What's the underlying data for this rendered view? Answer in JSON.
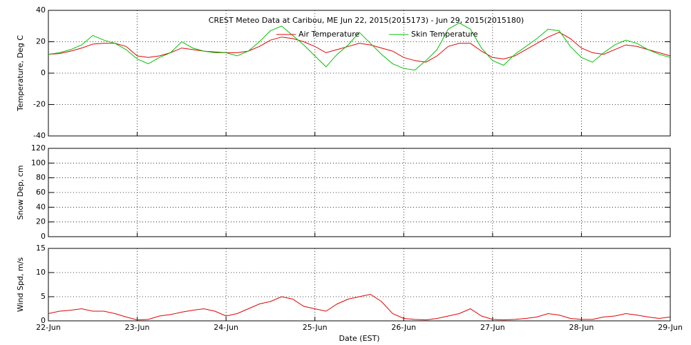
{
  "chart_data": [
    {
      "type": "line",
      "title": "CREST Meteo Data at Caribou, ME   Jun 22, 2015(2015173) - Jun 29, 2015(2015180)",
      "ylabel": "Temperature, Deg C",
      "xlim": [
        0,
        7
      ],
      "xticks": [
        0,
        1,
        2,
        3,
        4,
        5,
        6,
        7
      ],
      "ylim": [
        -40,
        40
      ],
      "yticks": [
        -40,
        -20,
        0,
        20,
        40
      ],
      "grid": true,
      "x": [
        0,
        0.125,
        0.25,
        0.375,
        0.5,
        0.625,
        0.75,
        0.875,
        1,
        1.125,
        1.25,
        1.375,
        1.5,
        1.625,
        1.75,
        1.875,
        2,
        2.125,
        2.25,
        2.375,
        2.5,
        2.625,
        2.75,
        2.875,
        3,
        3.125,
        3.25,
        3.375,
        3.5,
        3.625,
        3.75,
        3.875,
        4,
        4.125,
        4.25,
        4.375,
        4.5,
        4.625,
        4.75,
        4.875,
        5,
        5.125,
        5.25,
        5.375,
        5.5,
        5.625,
        5.75,
        5.875,
        6,
        6.125,
        6.25,
        6.375,
        6.5,
        6.625,
        6.75,
        6.875,
        7
      ],
      "series": [
        {
          "name": "Air Temperature",
          "color": "#e00000",
          "values": [
            12,
            12.5,
            14,
            16,
            18.5,
            19,
            19,
            17,
            11,
            10,
            11,
            13,
            16,
            15,
            14,
            13.5,
            13,
            13,
            14,
            17,
            21,
            23,
            22,
            20,
            17,
            13,
            15,
            17,
            19,
            18,
            16,
            14,
            10,
            8,
            7,
            11,
            17,
            19,
            19,
            14,
            10,
            9,
            11,
            15,
            19,
            23,
            26,
            22,
            16,
            13,
            12,
            15,
            18,
            17,
            15,
            13,
            11
          ]
        },
        {
          "name": "Skin Temperature",
          "color": "#00c000",
          "values": [
            12,
            13,
            15,
            18,
            24,
            21,
            19,
            15,
            9,
            6,
            10,
            13,
            20,
            16,
            14,
            13,
            13,
            11,
            14,
            20,
            27,
            30,
            24,
            18,
            11,
            4,
            12,
            18,
            26,
            19,
            12,
            6,
            3,
            2,
            8,
            15,
            28,
            32,
            28,
            16,
            8,
            5,
            12,
            17,
            22,
            28,
            27,
            17,
            10,
            7,
            13,
            18,
            21,
            19,
            15,
            12,
            10
          ]
        }
      ]
    },
    {
      "type": "line",
      "ylabel": "Snow Dep, cm",
      "xlim": [
        0,
        7
      ],
      "xticks": [
        0,
        1,
        2,
        3,
        4,
        5,
        6,
        7
      ],
      "ylim": [
        0,
        120
      ],
      "yticks": [
        0,
        20,
        40,
        60,
        80,
        100,
        120
      ],
      "grid": true,
      "series": []
    },
    {
      "type": "line",
      "ylabel": "Wind Spd, m/s",
      "xlabel": "Date (EST)",
      "xlim": [
        0,
        7
      ],
      "xticks": [
        {
          "value": 0,
          "label": "22-Jun"
        },
        {
          "value": 1,
          "label": "23-Jun"
        },
        {
          "value": 2,
          "label": "24-Jun"
        },
        {
          "value": 3,
          "label": "25-Jun"
        },
        {
          "value": 4,
          "label": "26-Jun"
        },
        {
          "value": 5,
          "label": "27-Jun"
        },
        {
          "value": 6,
          "label": "28-Jun"
        },
        {
          "value": 7,
          "label": "29-Jun"
        }
      ],
      "ylim": [
        0,
        15
      ],
      "yticks": [
        0,
        5,
        10,
        15
      ],
      "grid": true,
      "x": [
        0,
        0.125,
        0.25,
        0.375,
        0.5,
        0.625,
        0.75,
        0.875,
        1,
        1.125,
        1.25,
        1.375,
        1.5,
        1.625,
        1.75,
        1.875,
        2,
        2.125,
        2.25,
        2.375,
        2.5,
        2.625,
        2.75,
        2.875,
        3,
        3.125,
        3.25,
        3.375,
        3.5,
        3.625,
        3.75,
        3.875,
        4,
        4.125,
        4.25,
        4.375,
        4.5,
        4.625,
        4.75,
        4.875,
        5,
        5.125,
        5.25,
        5.375,
        5.5,
        5.625,
        5.75,
        5.875,
        6,
        6.125,
        6.25,
        6.375,
        6.5,
        6.625,
        6.75,
        6.875,
        7
      ],
      "series": [
        {
          "name": "Wind Speed",
          "color": "#e00000",
          "values": [
            1.5,
            2,
            2.2,
            2.5,
            2,
            2,
            1.5,
            0.8,
            0.2,
            0.3,
            1,
            1.3,
            1.8,
            2.2,
            2.5,
            2,
            1,
            1.5,
            2.5,
            3.5,
            4,
            5,
            4.5,
            3,
            2.5,
            2,
            3.5,
            4.5,
            5,
            5.5,
            4,
            1.5,
            0.5,
            0.3,
            0.2,
            0.5,
            1,
            1.5,
            2.5,
            1,
            0.3,
            0.2,
            0.3,
            0.5,
            0.8,
            1.5,
            1.2,
            0.5,
            0.3,
            0.3,
            0.8,
            1,
            1.5,
            1.2,
            0.8,
            0.5,
            0.8
          ]
        }
      ]
    }
  ]
}
